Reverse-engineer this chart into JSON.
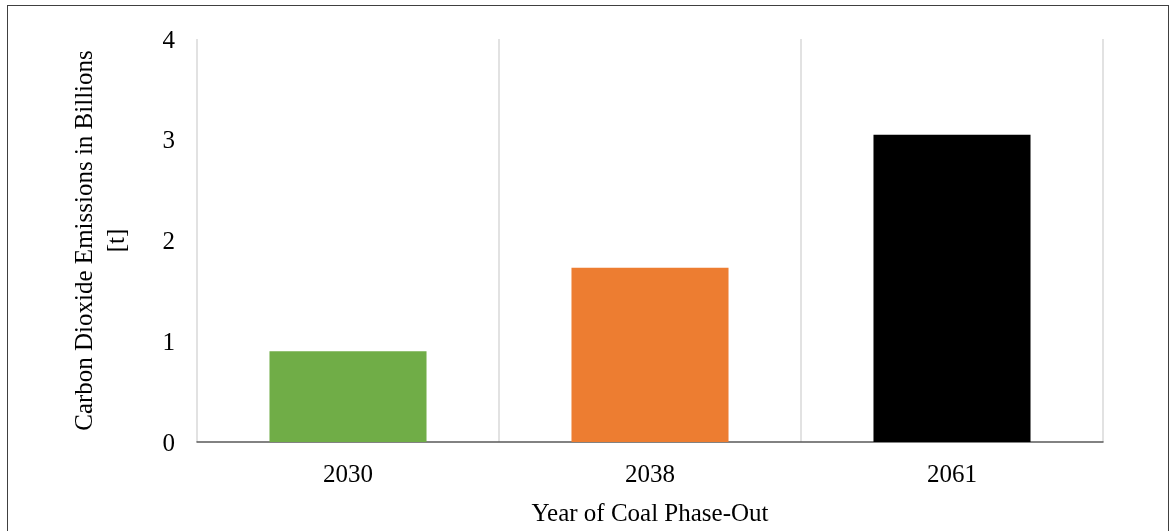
{
  "chart_data": {
    "type": "bar",
    "xlabel": "Year of Coal Phase-Out",
    "ylabel": "Carbon Dioxide Emissions in Billions [t]",
    "categories": [
      "2030",
      "2038",
      "2061"
    ],
    "values": [
      0.9,
      1.73,
      3.05
    ],
    "colors": [
      "#70ad47",
      "#ed7d31",
      "#000000"
    ],
    "ylim": [
      0,
      4
    ],
    "yticks": [
      0,
      1,
      2,
      3,
      4
    ],
    "grid": "x"
  }
}
